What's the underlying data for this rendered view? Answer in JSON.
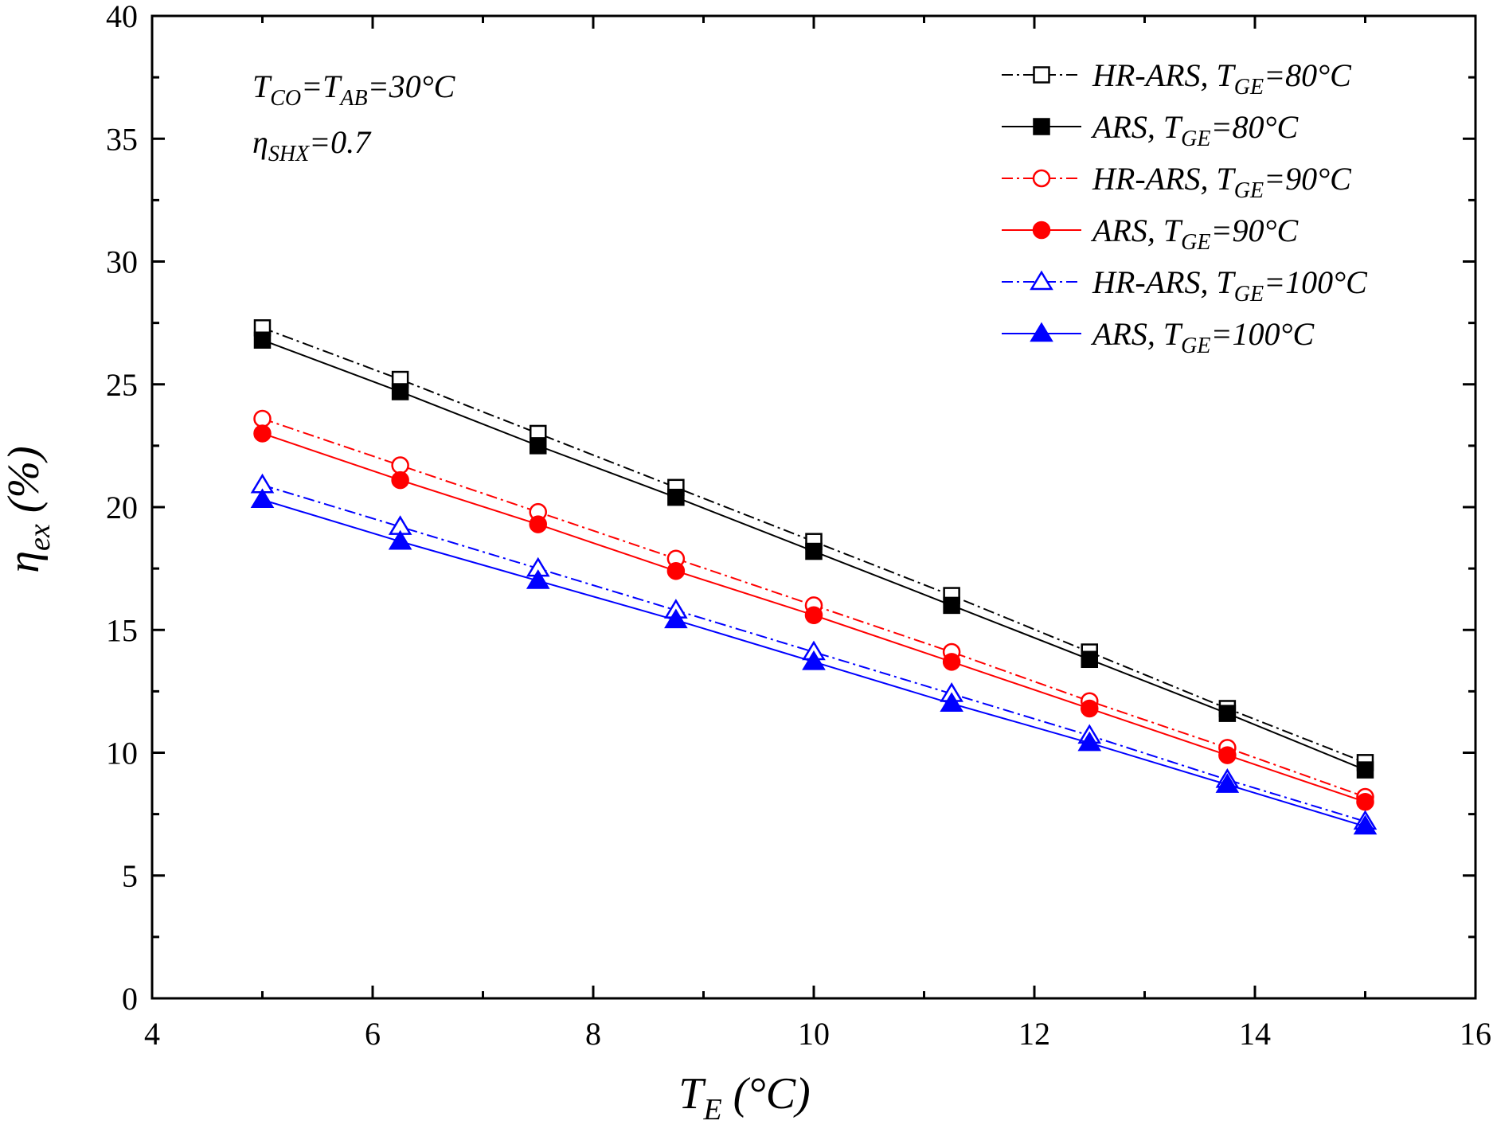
{
  "chart_data": {
    "type": "line",
    "xlabel": {
      "main": "T",
      "sub": "E",
      "rest": " (°C)"
    },
    "ylabel": {
      "main": "η",
      "sub": "ex",
      "rest": " (%)"
    },
    "xlim": [
      4,
      16
    ],
    "ylim": [
      0,
      40
    ],
    "xticks": [
      4,
      6,
      8,
      10,
      12,
      14,
      16
    ],
    "yticks": [
      0,
      5,
      10,
      15,
      20,
      25,
      30,
      35,
      40
    ],
    "x": [
      5,
      6.25,
      7.5,
      8.75,
      10,
      11.25,
      12.5,
      13.75,
      15
    ],
    "series": [
      {
        "name": "HR-ARS, T_GE=80°C",
        "label_a": "HR-ARS, T",
        "label_sub": "GE",
        "label_b": "=80°C",
        "color": "#000000",
        "marker": "square",
        "filled": false,
        "dash": "dashdot",
        "values": [
          27.3,
          25.2,
          23.0,
          20.8,
          18.6,
          16.4,
          14.1,
          11.8,
          9.6
        ]
      },
      {
        "name": "ARS, T_GE=80°C",
        "label_a": "ARS, T",
        "label_sub": "GE",
        "label_b": "=80°C",
        "color": "#000000",
        "marker": "square",
        "filled": true,
        "dash": "solid",
        "values": [
          26.8,
          24.7,
          22.5,
          20.4,
          18.2,
          16.0,
          13.8,
          11.6,
          9.3
        ]
      },
      {
        "name": "HR-ARS, T_GE=90°C",
        "label_a": "HR-ARS, T",
        "label_sub": "GE",
        "label_b": "=90°C",
        "color": "#ff0000",
        "marker": "circle",
        "filled": false,
        "dash": "dashdot",
        "values": [
          23.6,
          21.7,
          19.8,
          17.9,
          16.0,
          14.1,
          12.1,
          10.2,
          8.2
        ]
      },
      {
        "name": "ARS, T_GE=90°C",
        "label_a": "ARS, T",
        "label_sub": "GE",
        "label_b": "=90°C",
        "color": "#ff0000",
        "marker": "circle",
        "filled": true,
        "dash": "solid",
        "values": [
          23.0,
          21.1,
          19.3,
          17.4,
          15.6,
          13.7,
          11.8,
          9.9,
          8.0
        ]
      },
      {
        "name": "HR-ARS, T_GE=100°C",
        "label_a": "HR-ARS, T",
        "label_sub": "GE",
        "label_b": "=100°C",
        "color": "#0000ff",
        "marker": "triangle",
        "filled": false,
        "dash": "dashdot",
        "values": [
          20.9,
          19.2,
          17.5,
          15.8,
          14.1,
          12.4,
          10.7,
          8.9,
          7.2
        ]
      },
      {
        "name": "ARS, T_GE=100°C",
        "label_a": "ARS, T",
        "label_sub": "GE",
        "label_b": "=100°C",
        "color": "#0000ff",
        "marker": "triangle",
        "filled": true,
        "dash": "solid",
        "values": [
          20.3,
          18.6,
          17.0,
          15.4,
          13.7,
          12.0,
          10.4,
          8.7,
          7.0
        ]
      }
    ],
    "annotations": {
      "line1": {
        "a": "T",
        "a_sub": "CO",
        "b": "=T",
        "b_sub": "AB",
        "c": "=30°C"
      },
      "line2": {
        "a": "η",
        "a_sub": "SHX",
        "b": "=0.7"
      }
    },
    "legend_position": "top-right",
    "grid": false
  }
}
